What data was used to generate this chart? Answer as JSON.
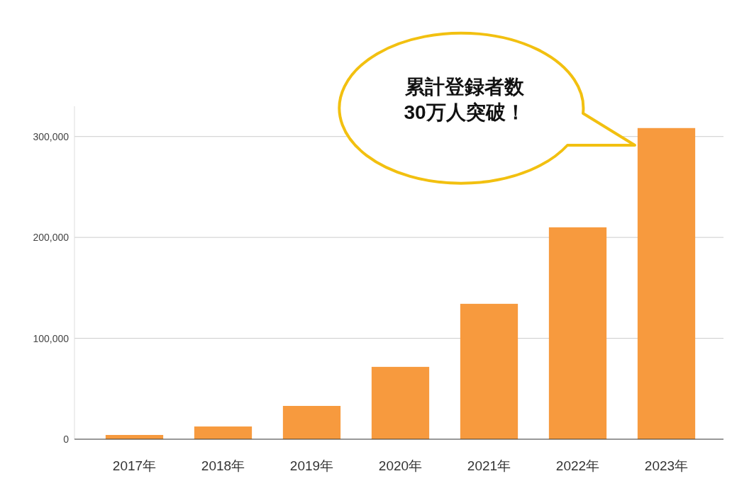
{
  "chart_data": {
    "type": "bar",
    "categories": [
      "2017年",
      "2018年",
      "2019年",
      "2020年",
      "2021年",
      "2022年",
      "2023年"
    ],
    "values": [
      4200,
      12600,
      33000,
      71700,
      134200,
      210000,
      308400
    ],
    "color": "#f79a3e",
    "ylim": [
      0,
      330000
    ],
    "yticks": [
      0,
      {
        "value": 100000,
        "label": "100,000"
      },
      {
        "value": 200000,
        "label": "200,000"
      },
      {
        "value": 300000,
        "label": "300,000"
      }
    ],
    "grid": "y",
    "annotations": [
      "累計登録者数\n30万人突破！"
    ]
  }
}
